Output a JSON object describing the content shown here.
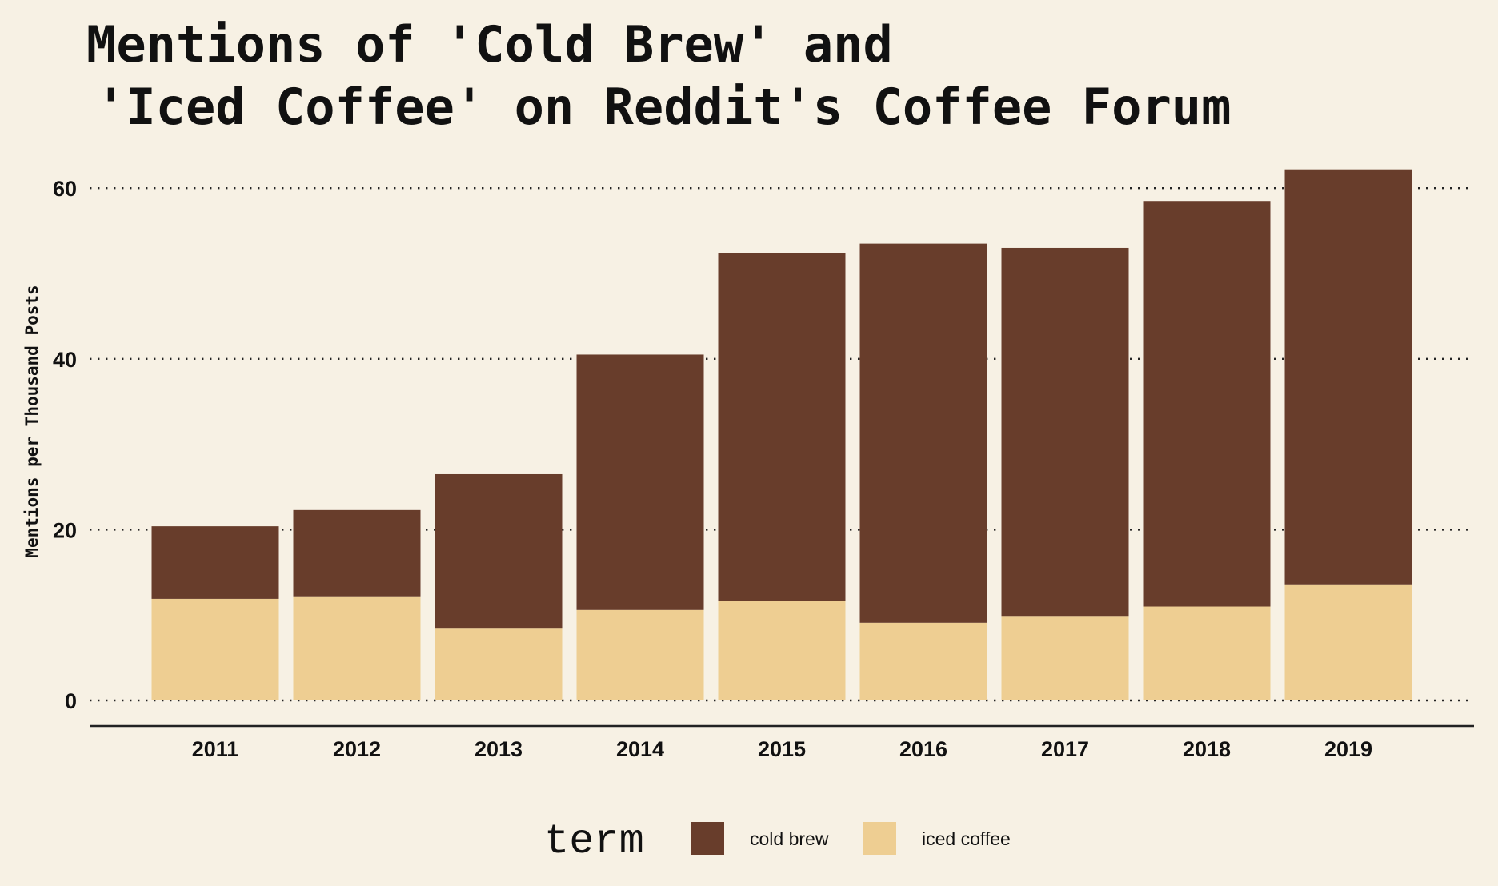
{
  "chart_data": {
    "type": "bar",
    "stacked": true,
    "title_lines": [
      "Mentions of 'Cold Brew' and",
      "'Iced Coffee' on Reddit's Coffee Forum"
    ],
    "xlabel": "",
    "ylabel": "Mentions per Thousand Posts",
    "ylim": [
      0,
      63
    ],
    "yticks": [
      0,
      20,
      40,
      60
    ],
    "grid": "horizontal dotted",
    "legend_position": "bottom",
    "legend_title": "term",
    "categories": [
      "2011",
      "2012",
      "2013",
      "2014",
      "2015",
      "2016",
      "2017",
      "2018",
      "2019"
    ],
    "series": [
      {
        "name": "iced coffee",
        "color": "#eece92",
        "values": [
          11.9,
          12.2,
          8.5,
          10.6,
          11.7,
          9.1,
          9.9,
          11.0,
          13.6
        ]
      },
      {
        "name": "cold brew",
        "color": "#683d2b",
        "values": [
          8.5,
          10.1,
          18.0,
          29.9,
          40.7,
          44.4,
          43.1,
          47.5,
          48.6
        ]
      }
    ],
    "legend_items": [
      {
        "label": "cold brew",
        "color": "#683d2b"
      },
      {
        "label": "iced coffee",
        "color": "#eece92"
      }
    ]
  },
  "colors": {
    "background": "#f7f1e4",
    "text": "#111111",
    "axis": "#222222"
  }
}
